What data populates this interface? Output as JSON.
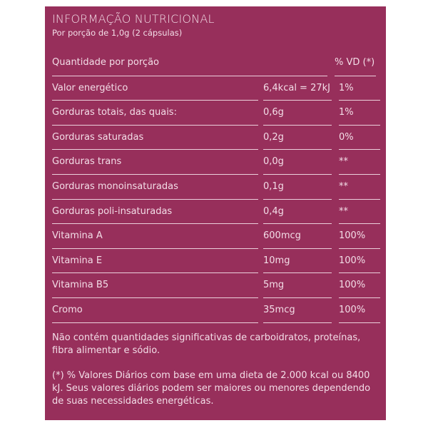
{
  "title": "INFORMAÇÃO NUTRICIONAL",
  "subtitle": "Por porção de 1,0g (2 cápsulas)",
  "header": {
    "label": "Quantidade por porção",
    "vd": "% VD (*)"
  },
  "rows": [
    {
      "label": "Valor energético",
      "amount": "6,4kcal = 27kJ",
      "vd": "1%"
    },
    {
      "label": "Gorduras totais, das quais:",
      "amount": "0,6g",
      "vd": "1%"
    },
    {
      "label": "Gorduras saturadas",
      "amount": "0,2g",
      "vd": "0%"
    },
    {
      "label": "Gorduras trans",
      "amount": "0,0g",
      "vd": "**"
    },
    {
      "label": "Gorduras monoinsaturadas",
      "amount": "0,1g",
      "vd": "**"
    },
    {
      "label": "Gorduras poli-insaturadas",
      "amount": "0,4g",
      "vd": "**"
    },
    {
      "label": "Vitamina A",
      "amount": "600mcg",
      "vd": "100%"
    },
    {
      "label": "Vitamina E",
      "amount": "10mg",
      "vd": "100%"
    },
    {
      "label": "Vitamina B5",
      "amount": "5mg",
      "vd": "100%"
    },
    {
      "label": "Cromo",
      "amount": "35mcg",
      "vd": "100%"
    }
  ],
  "notes": [
    "Não contém quantidades significativas de carboidratos, proteínas, fibra alimentar e sódio.",
    "(*) % Valores Diários com base em uma dieta de 2.000 kcal ou 8400 kJ. Seus valores diários podem ser maiores ou menores dependendo de suas necessidades energéticas."
  ],
  "colors": {
    "background": "#972f5b",
    "text": "#f3dde7"
  }
}
